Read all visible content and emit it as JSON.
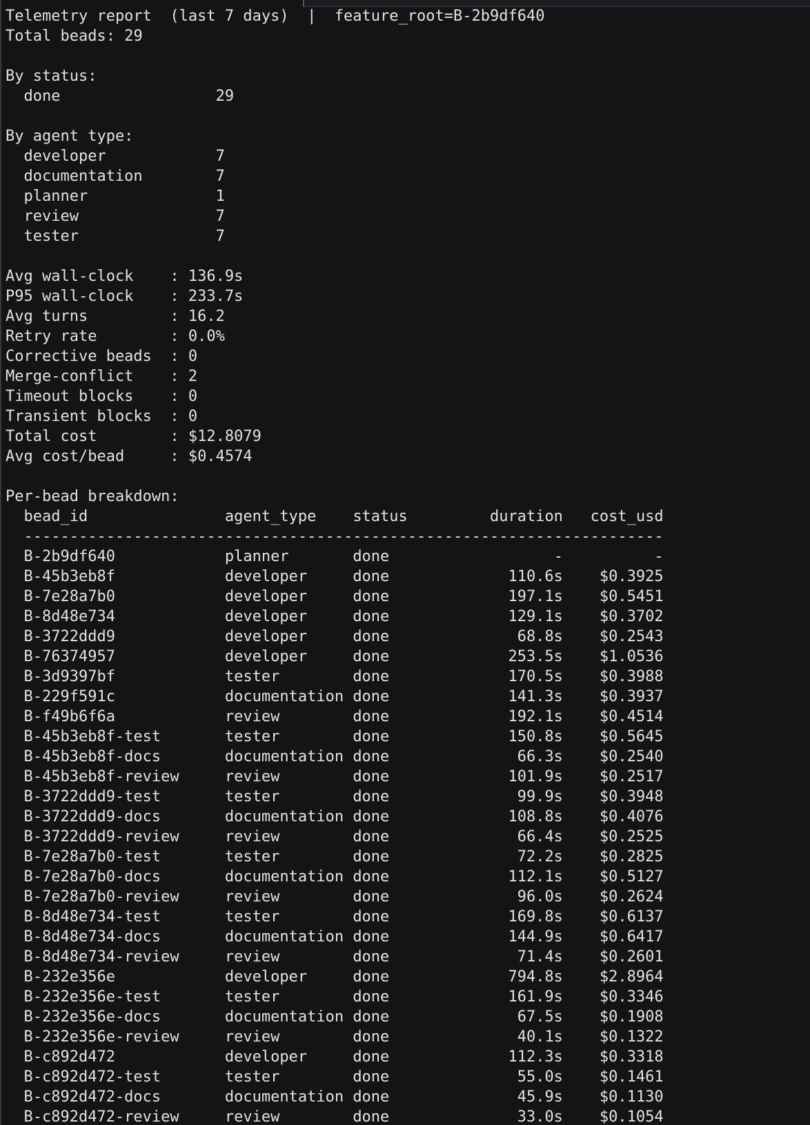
{
  "colors": {
    "background": "#131416",
    "foreground": "#e4e3e0",
    "pane_border": "#2c2f34",
    "left_strip": "#37393c"
  },
  "terminal": {
    "title": {
      "left": "Telemetry report  (last 7 days)",
      "separator": "|",
      "right": "feature_root=B-2b9df640"
    },
    "total_beads": {
      "label": "Total beads:",
      "value": "29"
    },
    "by_status": {
      "heading": "By status:",
      "items": [
        {
          "name": "done",
          "count": "29"
        }
      ]
    },
    "by_agent_type": {
      "heading": "By agent type:",
      "items": [
        {
          "name": "developer",
          "count": "7"
        },
        {
          "name": "documentation",
          "count": "7"
        },
        {
          "name": "planner",
          "count": "1"
        },
        {
          "name": "review",
          "count": "7"
        },
        {
          "name": "tester",
          "count": "7"
        }
      ]
    },
    "metrics": [
      {
        "label": "Avg wall-clock",
        "value": "136.9s"
      },
      {
        "label": "P95 wall-clock",
        "value": "233.7s"
      },
      {
        "label": "Avg turns",
        "value": "16.2"
      },
      {
        "label": "Retry rate",
        "value": "0.0%"
      },
      {
        "label": "Corrective beads",
        "value": "0"
      },
      {
        "label": "Merge-conflict",
        "value": "2"
      },
      {
        "label": "Timeout blocks",
        "value": "0"
      },
      {
        "label": "Transient blocks",
        "value": "0"
      },
      {
        "label": "Total cost",
        "value": "$12.8079"
      },
      {
        "label": "Avg cost/bead",
        "value": "$0.4574"
      }
    ],
    "breakdown": {
      "heading": "Per-bead breakdown:",
      "columns": {
        "bead_id": "bead_id",
        "agent_type": "agent_type",
        "status": "status",
        "duration": "duration",
        "cost_usd": "cost_usd"
      },
      "divider": "----------------------------------------------------------------------",
      "rows": [
        [
          "B-2b9df640",
          "planner",
          "done",
          "-",
          "-"
        ],
        [
          "B-45b3eb8f",
          "developer",
          "done",
          "110.6s",
          "$0.3925"
        ],
        [
          "B-7e28a7b0",
          "developer",
          "done",
          "197.1s",
          "$0.5451"
        ],
        [
          "B-8d48e734",
          "developer",
          "done",
          "129.1s",
          "$0.3702"
        ],
        [
          "B-3722ddd9",
          "developer",
          "done",
          "68.8s",
          "$0.2543"
        ],
        [
          "B-76374957",
          "developer",
          "done",
          "253.5s",
          "$1.0536"
        ],
        [
          "B-3d9397bf",
          "tester",
          "done",
          "170.5s",
          "$0.3988"
        ],
        [
          "B-229f591c",
          "documentation",
          "done",
          "141.3s",
          "$0.3937"
        ],
        [
          "B-f49b6f6a",
          "review",
          "done",
          "192.1s",
          "$0.4514"
        ],
        [
          "B-45b3eb8f-test",
          "tester",
          "done",
          "150.8s",
          "$0.5645"
        ],
        [
          "B-45b3eb8f-docs",
          "documentation",
          "done",
          "66.3s",
          "$0.2540"
        ],
        [
          "B-45b3eb8f-review",
          "review",
          "done",
          "101.9s",
          "$0.2517"
        ],
        [
          "B-3722ddd9-test",
          "tester",
          "done",
          "99.9s",
          "$0.3948"
        ],
        [
          "B-3722ddd9-docs",
          "documentation",
          "done",
          "108.8s",
          "$0.4076"
        ],
        [
          "B-3722ddd9-review",
          "review",
          "done",
          "66.4s",
          "$0.2525"
        ],
        [
          "B-7e28a7b0-test",
          "tester",
          "done",
          "72.2s",
          "$0.2825"
        ],
        [
          "B-7e28a7b0-docs",
          "documentation",
          "done",
          "112.1s",
          "$0.5127"
        ],
        [
          "B-7e28a7b0-review",
          "review",
          "done",
          "96.0s",
          "$0.2624"
        ],
        [
          "B-8d48e734-test",
          "tester",
          "done",
          "169.8s",
          "$0.6137"
        ],
        [
          "B-8d48e734-docs",
          "documentation",
          "done",
          "144.9s",
          "$0.6417"
        ],
        [
          "B-8d48e734-review",
          "review",
          "done",
          "71.4s",
          "$0.2601"
        ],
        [
          "B-232e356e",
          "developer",
          "done",
          "794.8s",
          "$2.8964"
        ],
        [
          "B-232e356e-test",
          "tester",
          "done",
          "161.9s",
          "$0.3346"
        ],
        [
          "B-232e356e-docs",
          "documentation",
          "done",
          "67.5s",
          "$0.1908"
        ],
        [
          "B-232e356e-review",
          "review",
          "done",
          "40.1s",
          "$0.1322"
        ],
        [
          "B-c892d472",
          "developer",
          "done",
          "112.3s",
          "$0.3318"
        ],
        [
          "B-c892d472-test",
          "tester",
          "done",
          "55.0s",
          "$0.1461"
        ],
        [
          "B-c892d472-docs",
          "documentation",
          "done",
          "45.9s",
          "$0.1130"
        ],
        [
          "B-c892d472-review",
          "review",
          "done",
          "33.0s",
          "$0.1054"
        ]
      ]
    }
  }
}
